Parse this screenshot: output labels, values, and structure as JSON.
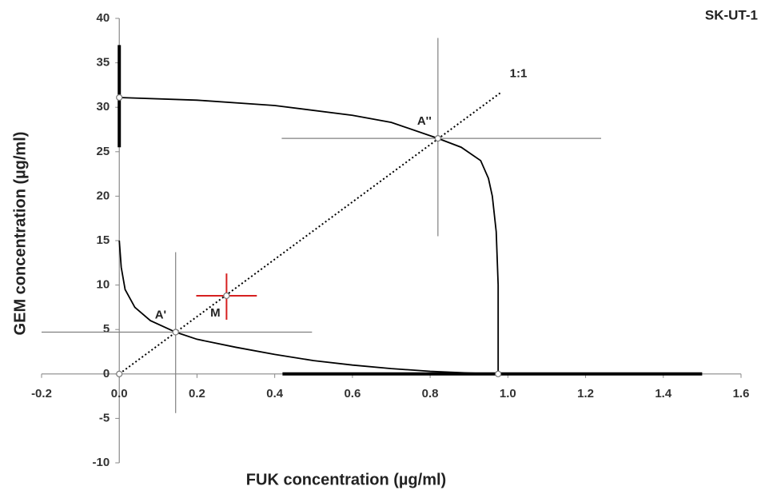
{
  "chart_data": {
    "type": "line",
    "title": "SK-UT-1",
    "x_label": "FUK concentration (µg/ml)",
    "y_label": "GEM concentration (µg/ml)",
    "xlim": [
      -0.2,
      1.6
    ],
    "ylim": [
      -10,
      40
    ],
    "xticks": [
      -0.2,
      {
        "value": 0,
        "label": "0.0"
      },
      0.2,
      0.4,
      0.6,
      0.8,
      {
        "value": 1,
        "label": "1.0"
      },
      1.2,
      1.4,
      1.6
    ],
    "yticks": [
      -10,
      -5,
      0,
      5,
      10,
      15,
      20,
      25,
      30,
      35,
      40
    ],
    "series": [
      {
        "color": "#000000",
        "style": "solid",
        "x": [
          0,
          0.2,
          0.4,
          0.6,
          0.7,
          0.82,
          0.88,
          0.93,
          0.95,
          0.96,
          0.97,
          0.975,
          0.975
        ],
        "values": [
          31.1,
          30.8,
          30.2,
          29.1,
          28.3,
          26.5,
          25.5,
          24,
          22,
          20,
          16,
          10,
          0
        ]
      },
      {
        "color": "#000000",
        "style": "solid",
        "x": [
          0,
          0.005,
          0.015,
          0.04,
          0.08,
          0.145,
          0.2,
          0.3,
          0.4,
          0.5,
          0.6,
          0.7,
          0.8,
          0.9,
          0.975
        ],
        "values": [
          15,
          12,
          9.5,
          7.5,
          6,
          4.7,
          3.9,
          3,
          2.2,
          1.5,
          1,
          0.6,
          0.3,
          0.1,
          0
        ]
      },
      {
        "color": "#000000",
        "style": "dotted",
        "label": "1:1",
        "x": [
          0,
          0.98
        ],
        "values": [
          0,
          31.6
        ]
      },
      {
        "color": "#000000",
        "style": "thick",
        "x": [
          0,
          0
        ],
        "values": [
          25.5,
          37
        ]
      },
      {
        "color": "#000000",
        "style": "thick",
        "x": [
          0.42,
          1.5
        ],
        "values": [
          0,
          0
        ]
      }
    ],
    "points": [
      {
        "x": 0,
        "y": 31.1
      },
      {
        "x": 0,
        "y": 0
      },
      {
        "x": 0.975,
        "y": 0
      },
      {
        "label": "A''",
        "x": 0.82,
        "y": 26.5,
        "x_range": [
          0.418,
          1.24
        ],
        "y_range": [
          15.5,
          37.8
        ],
        "color": "#808080"
      },
      {
        "label": "A'",
        "x": 0.145,
        "y": 4.7,
        "x_range": [
          -0.2,
          0.496
        ],
        "y_range": [
          -4.4,
          13.7
        ],
        "color": "#808080"
      },
      {
        "label": "M",
        "x": 0.276,
        "y": 8.8,
        "x_range": [
          0.198,
          0.354
        ],
        "y_range": [
          6.1,
          11.3
        ],
        "color": "#d62020"
      }
    ]
  }
}
